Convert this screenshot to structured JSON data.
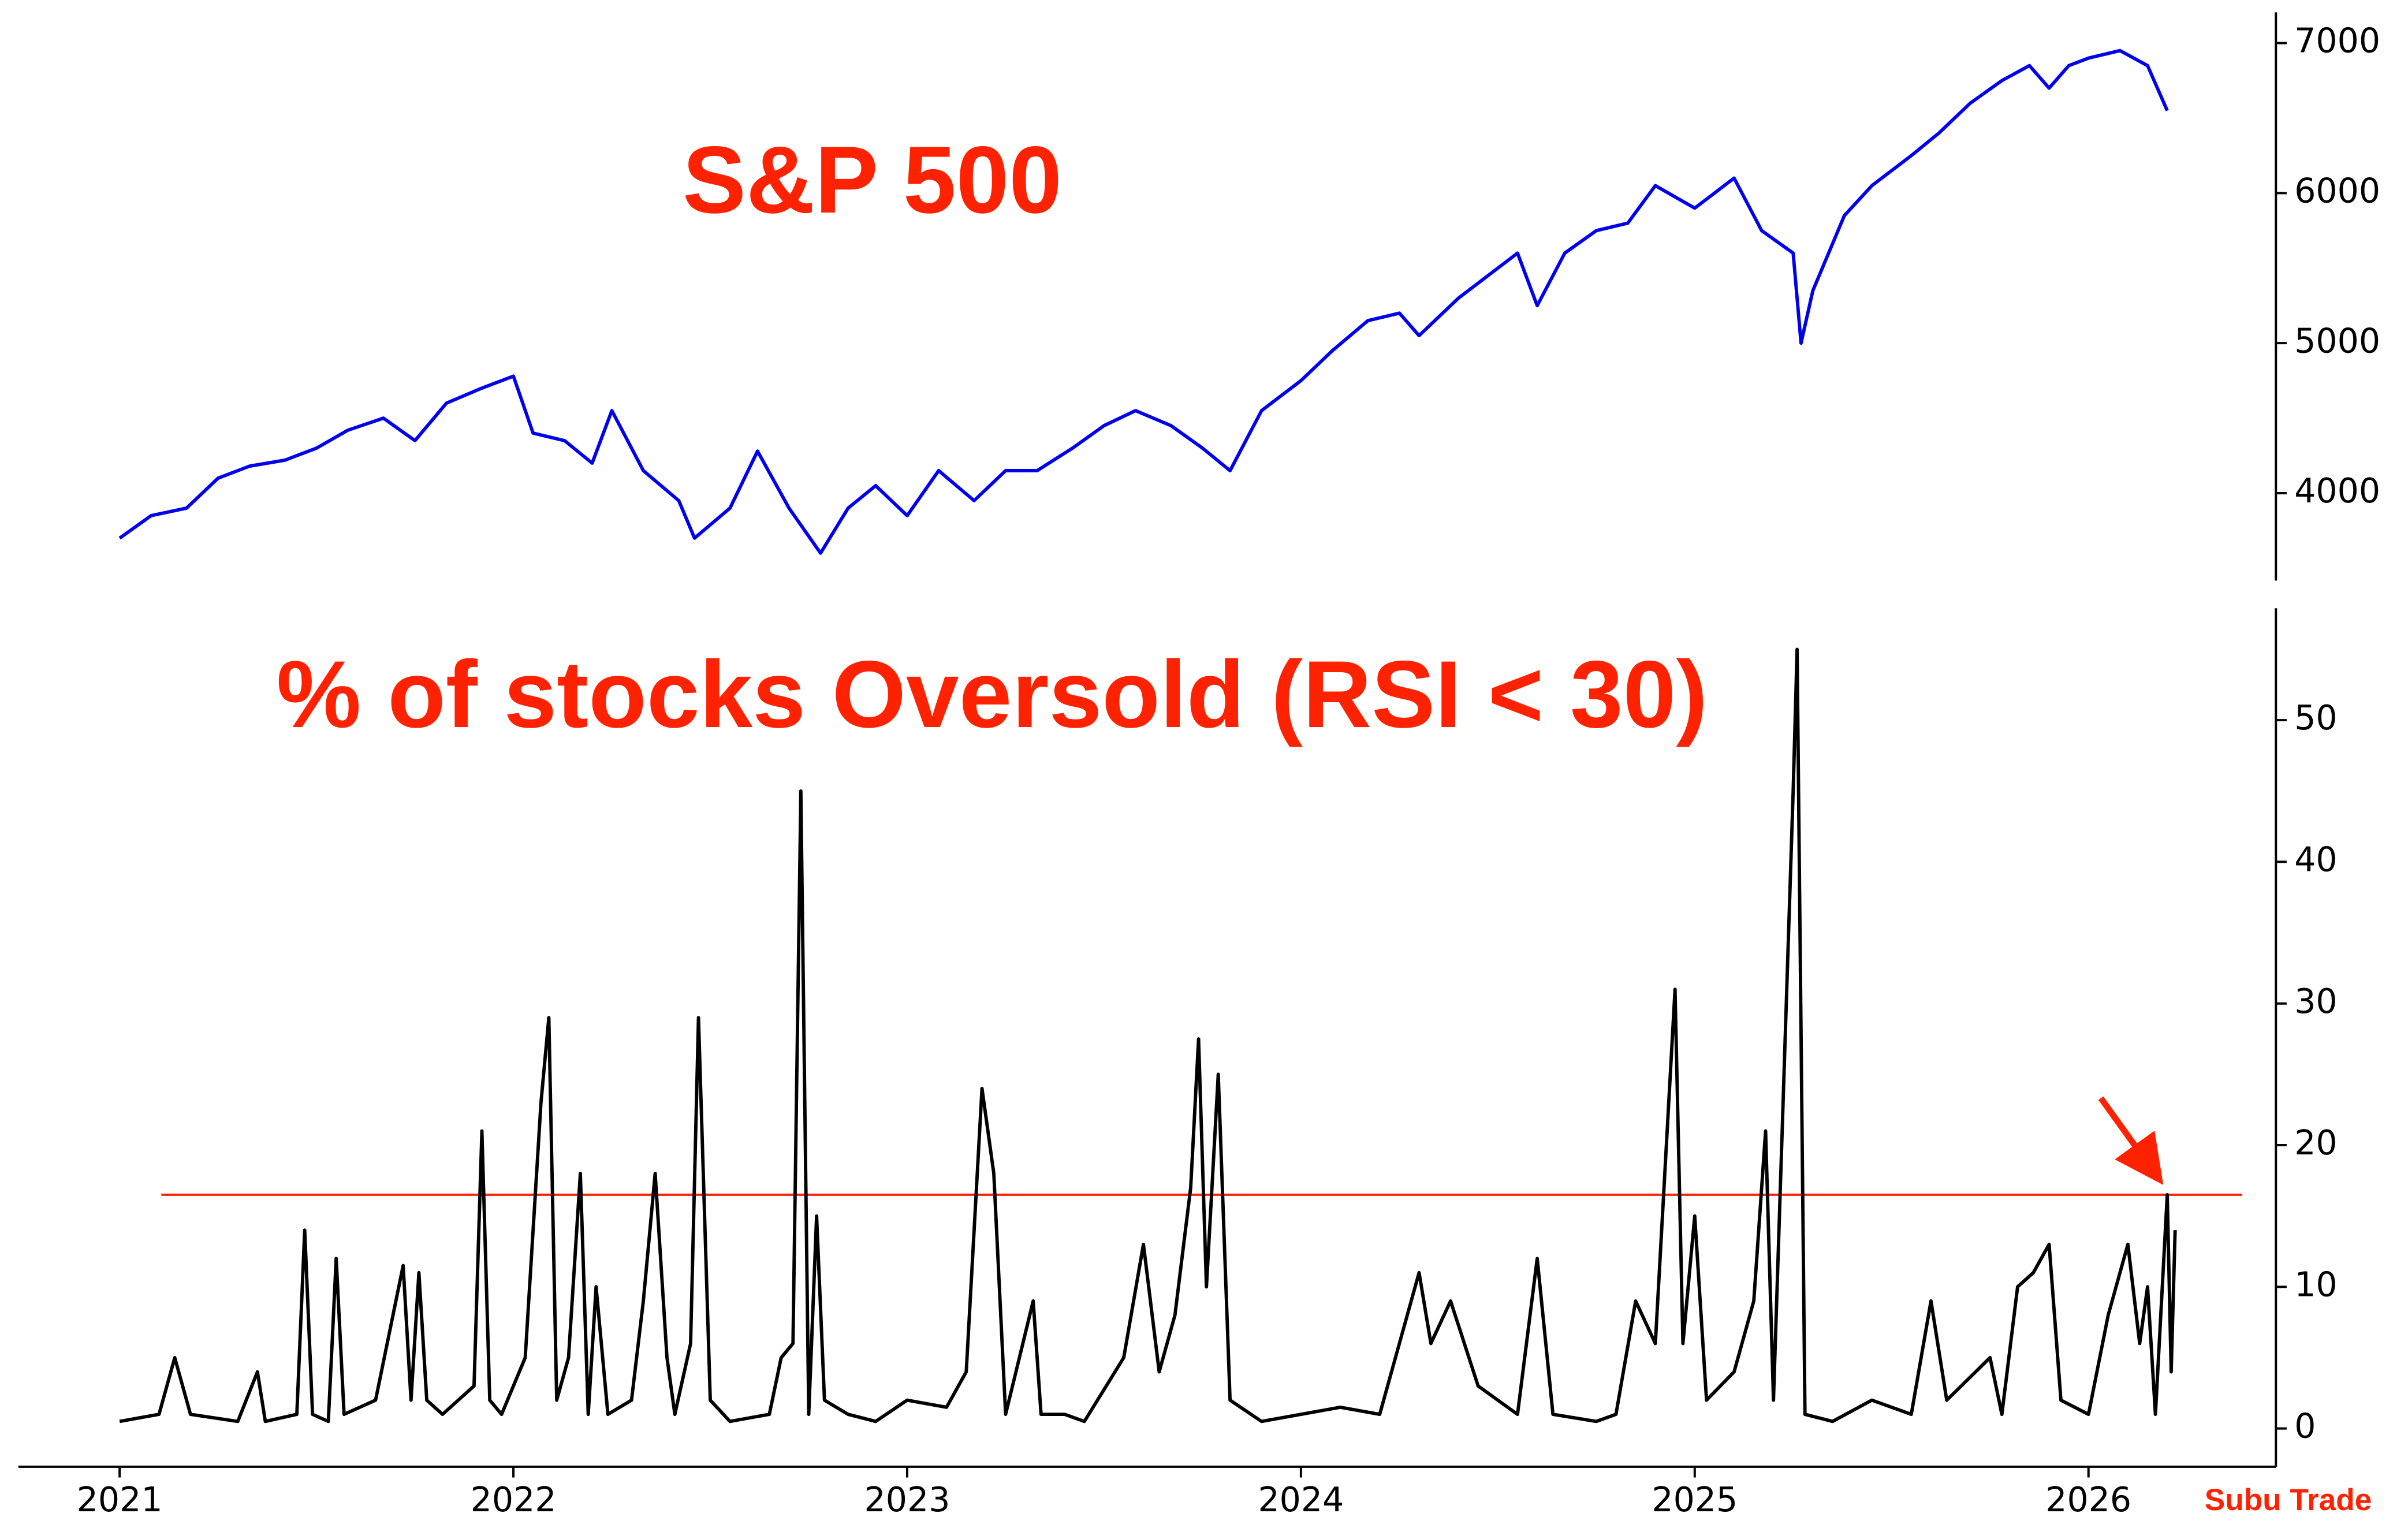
{
  "chart_data": [
    {
      "type": "line",
      "title": "S&P 500",
      "x": [
        2021.0,
        2021.08,
        2021.17,
        2021.25,
        2021.33,
        2021.42,
        2021.5,
        2021.58,
        2021.67,
        2021.75,
        2021.83,
        2021.92,
        2022.0,
        2022.05,
        2022.13,
        2022.2,
        2022.25,
        2022.33,
        2022.42,
        2022.46,
        2022.55,
        2022.62,
        2022.7,
        2022.78,
        2022.85,
        2022.92,
        2023.0,
        2023.08,
        2023.17,
        2023.25,
        2023.33,
        2023.42,
        2023.5,
        2023.58,
        2023.67,
        2023.75,
        2023.82,
        2023.9,
        2024.0,
        2024.08,
        2024.17,
        2024.25,
        2024.3,
        2024.4,
        2024.5,
        2024.55,
        2024.6,
        2024.67,
        2024.75,
        2024.83,
        2024.9,
        2025.0,
        2025.1,
        2025.17,
        2025.25,
        2025.27,
        2025.3,
        2025.38,
        2025.45,
        2025.55,
        2025.62,
        2025.7,
        2025.78,
        2025.85,
        2025.9,
        2025.95,
        2026.0,
        2026.08,
        2026.15,
        2026.2
      ],
      "series": [
        {
          "name": "S&P 500",
          "color": "#0000ee",
          "values": [
            3700,
            3850,
            3900,
            4100,
            4180,
            4220,
            4300,
            4420,
            4500,
            4350,
            4600,
            4700,
            4780,
            4400,
            4350,
            4200,
            4550,
            4150,
            3950,
            3700,
            3900,
            4280,
            3900,
            3600,
            3900,
            4050,
            3850,
            4150,
            3950,
            4150,
            4150,
            4300,
            4450,
            4550,
            4450,
            4300,
            4150,
            4550,
            4750,
            4950,
            5150,
            5200,
            5050,
            5300,
            5500,
            5600,
            5250,
            5600,
            5750,
            5800,
            6050,
            5900,
            6100,
            5750,
            5600,
            5000,
            5350,
            5850,
            6050,
            6250,
            6400,
            6600,
            6750,
            6850,
            6700,
            6850,
            6900,
            6950,
            6850,
            6550
          ]
        }
      ],
      "xlim": [
        2020.743,
        2026.476
      ],
      "ylim": [
        3417,
        7205
      ],
      "yticks": [
        4000,
        5000,
        6000,
        7000
      ]
    },
    {
      "type": "line",
      "title": "% of stocks Oversold (RSI < 30)",
      "source": "Subu Trade",
      "x": [
        2021.0,
        2021.1,
        2021.14,
        2021.18,
        2021.3,
        2021.35,
        2021.37,
        2021.45,
        2021.47,
        2021.49,
        2021.53,
        2021.55,
        2021.57,
        2021.65,
        2021.72,
        2021.74,
        2021.76,
        2021.78,
        2021.82,
        2021.9,
        2021.92,
        2021.94,
        2021.97,
        2022.03,
        2022.07,
        2022.09,
        2022.11,
        2022.14,
        2022.17,
        2022.19,
        2022.21,
        2022.24,
        2022.3,
        2022.33,
        2022.36,
        2022.39,
        2022.41,
        2022.45,
        2022.47,
        2022.5,
        2022.55,
        2022.65,
        2022.68,
        2022.71,
        2022.73,
        2022.75,
        2022.77,
        2022.79,
        2022.85,
        2022.92,
        2023.0,
        2023.1,
        2023.15,
        2023.19,
        2023.22,
        2023.25,
        2023.32,
        2023.34,
        2023.4,
        2023.45,
        2023.55,
        2023.6,
        2023.64,
        2023.68,
        2023.72,
        2023.74,
        2023.76,
        2023.79,
        2023.82,
        2023.9,
        2024.0,
        2024.1,
        2024.2,
        2024.3,
        2024.33,
        2024.38,
        2024.45,
        2024.55,
        2024.6,
        2024.64,
        2024.75,
        2024.8,
        2024.85,
        2024.9,
        2024.95,
        2024.97,
        2025.0,
        2025.03,
        2025.1,
        2025.15,
        2025.18,
        2025.2,
        2025.25,
        2025.26,
        2025.28,
        2025.35,
        2025.45,
        2025.55,
        2025.6,
        2025.64,
        2025.75,
        2025.78,
        2025.82,
        2025.86,
        2025.9,
        2025.93,
        2026.0,
        2026.05,
        2026.1,
        2026.13,
        2026.15,
        2026.17,
        2026.2,
        2026.21,
        2026.22
      ],
      "series": [
        {
          "name": "% of stocks Oversold",
          "color": "#000000",
          "values": [
            0.5,
            1,
            5,
            1,
            0.5,
            4,
            0.5,
            1,
            14,
            1,
            0.5,
            12,
            1,
            2,
            11.5,
            2,
            11,
            2,
            1,
            3,
            21,
            2,
            1,
            5,
            23,
            29,
            2,
            5,
            18,
            1,
            10,
            1,
            2,
            9,
            18,
            5,
            1,
            6,
            29,
            2,
            0.5,
            1,
            5,
            6,
            45,
            1,
            15,
            2,
            1,
            0.5,
            2,
            1.5,
            4,
            24,
            18,
            1,
            9,
            1,
            1,
            0.5,
            5,
            13,
            4,
            8,
            17,
            27.5,
            10,
            25,
            2,
            0.5,
            1,
            1.5,
            1,
            11,
            6,
            9,
            3,
            1,
            12,
            1,
            0.5,
            1,
            9,
            6,
            31,
            6,
            15,
            2,
            4,
            9,
            21,
            2,
            45,
            55,
            1,
            0.5,
            2,
            1,
            9,
            2,
            5,
            1,
            10,
            11,
            13,
            2,
            1,
            8,
            13,
            6,
            10,
            1,
            16.5,
            4,
            14
          ]
        }
      ],
      "hline": {
        "value": 16.5,
        "color": "#ff2200"
      },
      "xlim": [
        2020.743,
        2026.476
      ],
      "ylim": [
        -2.7,
        57.9
      ],
      "xticks": [
        2021,
        2022,
        2023,
        2024,
        2025,
        2026
      ],
      "yticks": [
        0,
        10,
        20,
        30,
        40,
        50
      ]
    }
  ]
}
